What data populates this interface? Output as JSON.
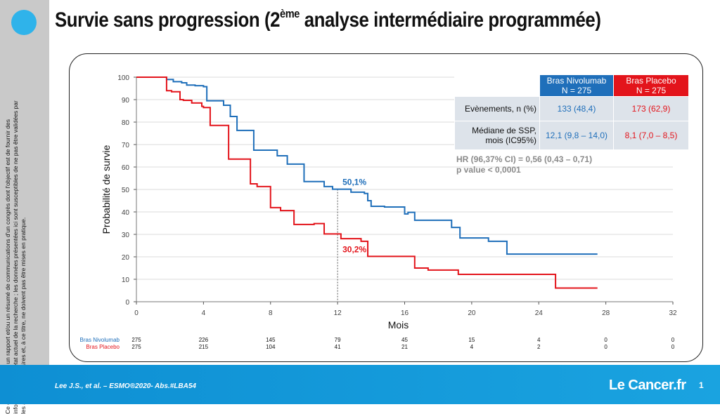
{
  "title_main": "Survie sans progression (2",
  "title_sup": "ème",
  "title_rest": " analyse intermédiaire programmée)",
  "side_note": "Ce contenu est un un rapport et/ou un résumé de communications d'un congrès dont l'objectif est de fournir des informations sur l'état actuel de la recherche ; les données présentées ici sont susceptibles de ne pas être validées par les autorités sanitaires et, à ce titre, ne doivent pas être mises en pratique.",
  "footer": {
    "citation": "Lee J.S., et al. – ESMO®2020- Abs.#LBA54",
    "brand": "Le Cancer.fr",
    "page": "1"
  },
  "table": {
    "col_nivo": [
      "Bras Nivolumab",
      "N = 275"
    ],
    "col_placebo": [
      "Bras Placebo",
      "N = 275"
    ],
    "rows": [
      {
        "label": [
          "Evènements, n (%)"
        ],
        "nivo": "133 (48,4)",
        "placebo": "173 (62,9)"
      },
      {
        "label": [
          "Médiane de SSP,",
          "mois (IC95%)"
        ],
        "nivo": "12,1 (9,8 – 14,0)",
        "placebo": "8,1 (7,0 – 8,5)"
      }
    ]
  },
  "hr_line": "HR (96,37% CI) = 0,56 (0,43 – 0,71)",
  "p_line": "p value < 0,0001",
  "colors": {
    "nivo": "#1f6fba",
    "placebo": "#e3141b",
    "accent": "#1aa3e0",
    "grid": "#cfcfcf"
  },
  "chart_data": {
    "type": "line",
    "xlabel": "Mois",
    "ylabel": "Probabilité de survie",
    "xlim": [
      0,
      32
    ],
    "ylim": [
      0,
      100
    ],
    "xticks": [
      0,
      4,
      8,
      12,
      16,
      20,
      24,
      28,
      32
    ],
    "yticks": [
      0,
      10,
      20,
      30,
      40,
      50,
      60,
      70,
      80,
      90,
      100
    ],
    "annotations": [
      {
        "text": "50,1%",
        "x": 12,
        "y": 50.1,
        "series": "Bras Nivolumab"
      },
      {
        "text": "30,2%",
        "x": 12,
        "y": 30.2,
        "series": "Bras Placebo"
      }
    ],
    "reference_line_x": 12,
    "series": [
      {
        "name": "Bras Nivolumab",
        "x": [
          0,
          1.4,
          1.8,
          2.2,
          2.7,
          3.0,
          3.5,
          4.0,
          4.2,
          4.8,
          5.2,
          5.6,
          6.0,
          6.8,
          7.0,
          8.0,
          8.4,
          9.0,
          9.4,
          10.0,
          10.6,
          11.2,
          11.7,
          12.2,
          12.8,
          13.6,
          13.8,
          14.0,
          14.4,
          14.8,
          16.0,
          16.2,
          16.6,
          17.0,
          18.0,
          18.8,
          19.3,
          20.2,
          21.0,
          22.1,
          23.2,
          27.5
        ],
        "y": [
          100,
          100,
          99,
          98,
          97.5,
          96.5,
          96.2,
          95.8,
          89.5,
          89.5,
          87.5,
          82.5,
          76.3,
          76.3,
          67.5,
          67.5,
          65,
          61.3,
          61.3,
          53.5,
          53.5,
          51.3,
          50.1,
          50.1,
          48.8,
          48.2,
          45,
          42.5,
          42.5,
          42.2,
          39.1,
          39.8,
          36.3,
          36.3,
          36.3,
          33.1,
          28.4,
          28.4,
          26.9,
          21.2,
          21.2,
          21.2
        ]
      },
      {
        "name": "Bras Placebo",
        "x": [
          0,
          1.3,
          1.8,
          2.1,
          2.6,
          2.8,
          3.3,
          3.9,
          4.0,
          4.4,
          5.2,
          5.5,
          6.0,
          6.8,
          7.2,
          7.6,
          8.0,
          8.6,
          9.0,
          9.4,
          10.0,
          10.6,
          11.2,
          11.7,
          12.2,
          13.4,
          13.8,
          14.0,
          16.2,
          16.6,
          16.9,
          17.4,
          18.0,
          19.2,
          20.0,
          23.2,
          25.0,
          27.5
        ],
        "y": [
          100,
          100,
          94,
          93.5,
          90,
          89.7,
          88.5,
          87,
          86.5,
          78.5,
          78.5,
          63.5,
          63.5,
          52.5,
          51.3,
          51.3,
          41.9,
          40.6,
          40.6,
          34.4,
          34.4,
          34.8,
          30.2,
          30.2,
          28.1,
          26.9,
          20.2,
          20.2,
          20.2,
          15,
          15,
          14.1,
          14.1,
          12.2,
          12.2,
          12.2,
          6.1,
          6.1
        ]
      }
    ],
    "risk_table": {
      "x": [
        0,
        4,
        8,
        12,
        16,
        20,
        24,
        28,
        32
      ],
      "rows": [
        {
          "name": "Bras Nivolumab",
          "values": [
            275,
            226,
            145,
            79,
            45,
            15,
            4,
            0,
            0
          ]
        },
        {
          "name": "Bras Placebo",
          "values": [
            275,
            215,
            104,
            41,
            21,
            4,
            2,
            0,
            0
          ]
        }
      ]
    }
  }
}
